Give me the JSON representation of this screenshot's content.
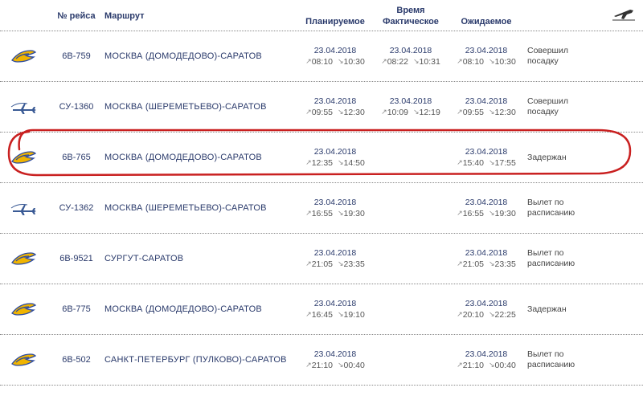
{
  "colors": {
    "text_primary": "#2a3a6b",
    "text_secondary": "#555555",
    "divider": "#888888",
    "background": "#ffffff",
    "highlight": "#c92020",
    "logo_saravia_blue": "#2b4aa0",
    "logo_saravia_yellow": "#f0b400",
    "logo_aeroflot": "#3a5a95"
  },
  "plane_icon": "✈",
  "header": {
    "flight_no": "№ рейса",
    "route": "Маршрут",
    "time": "Время",
    "planned": "Планируемое",
    "actual": "Фактическое",
    "expected": "Ожидаемое"
  },
  "rows": [
    {
      "airline": "saravia",
      "flight": "6В-759",
      "route": "МОСКВА (ДОМОДЕДОВО)-САРАТОВ",
      "planned": {
        "date": "23.04.2018",
        "dep": "08:10",
        "arr": "10:30"
      },
      "actual": {
        "date": "23.04.2018",
        "dep": "08:22",
        "arr": "10:31"
      },
      "expected": {
        "date": "23.04.2018",
        "dep": "08:10",
        "arr": "10:30"
      },
      "status": "Совершил посадку"
    },
    {
      "airline": "aeroflot",
      "flight": "СУ-1360",
      "route": "МОСКВА (ШЕРЕМЕТЬЕВО)-САРАТОВ",
      "planned": {
        "date": "23.04.2018",
        "dep": "09:55",
        "arr": "12:30"
      },
      "actual": {
        "date": "23.04.2018",
        "dep": "10:09",
        "arr": "12:19"
      },
      "expected": {
        "date": "23.04.2018",
        "dep": "09:55",
        "arr": "12:30"
      },
      "status": "Совершил посадку"
    },
    {
      "airline": "saravia",
      "flight": "6В-765",
      "route": "МОСКВА (ДОМОДЕДОВО)-САРАТОВ",
      "planned": {
        "date": "23.04.2018",
        "dep": "12:35",
        "arr": "14:50"
      },
      "actual": null,
      "expected": {
        "date": "23.04.2018",
        "dep": "15:40",
        "arr": "17:55"
      },
      "status": "Задержан",
      "highlighted": true
    },
    {
      "airline": "aeroflot",
      "flight": "СУ-1362",
      "route": "МОСКВА (ШЕРЕМЕТЬЕВО)-САРАТОВ",
      "planned": {
        "date": "23.04.2018",
        "dep": "16:55",
        "arr": "19:30"
      },
      "actual": null,
      "expected": {
        "date": "23.04.2018",
        "dep": "16:55",
        "arr": "19:30"
      },
      "status": "Вылет по расписанию"
    },
    {
      "airline": "saravia",
      "flight": "6В-9521",
      "route": "СУРГУТ-САРАТОВ",
      "planned": {
        "date": "23.04.2018",
        "dep": "21:05",
        "arr": "23:35"
      },
      "actual": null,
      "expected": {
        "date": "23.04.2018",
        "dep": "21:05",
        "arr": "23:35"
      },
      "status": "Вылет по расписанию"
    },
    {
      "airline": "saravia",
      "flight": "6В-775",
      "route": "МОСКВА (ДОМОДЕДОВО)-САРАТОВ",
      "planned": {
        "date": "23.04.2018",
        "dep": "16:45",
        "arr": "19:10"
      },
      "actual": null,
      "expected": {
        "date": "23.04.2018",
        "dep": "20:10",
        "arr": "22:25"
      },
      "status": "Задержан"
    },
    {
      "airline": "saravia",
      "flight": "6В-502",
      "route": "САНКТ-ПЕТЕРБУРГ (ПУЛКОВО)-САРАТОВ",
      "planned": {
        "date": "23.04.2018",
        "dep": "21:10",
        "arr": "00:40"
      },
      "actual": null,
      "expected": {
        "date": "23.04.2018",
        "dep": "21:10",
        "arr": "00:40"
      },
      "status": "Вылет по расписанию"
    }
  ]
}
